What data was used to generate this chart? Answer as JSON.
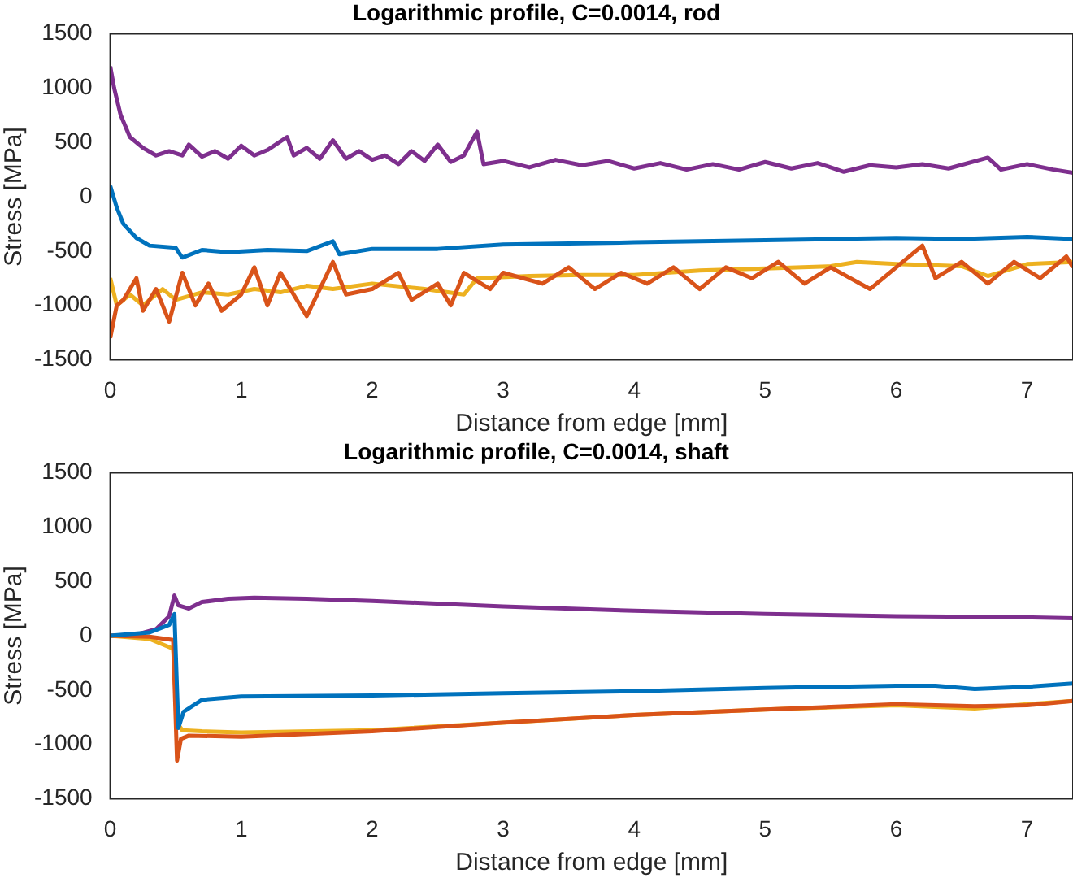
{
  "chart_data": [
    {
      "type": "line",
      "title": "Logarithmic profile, C=0.0014, rod",
      "xlabel": "Distance from edge [mm]",
      "ylabel": "Stress [MPa]",
      "xlim": [
        0,
        7.35
      ],
      "xticks": [
        0,
        1,
        2,
        3,
        4,
        5,
        6,
        7
      ],
      "ylim": [
        -1500,
        1500
      ],
      "yticks": [
        -1500,
        -1000,
        -500,
        0,
        500,
        1000,
        1500
      ],
      "series": [
        {
          "color": "#0072bd",
          "x": [
            0,
            0.05,
            0.1,
            0.2,
            0.3,
            0.5,
            0.55,
            0.7,
            0.9,
            1.2,
            1.5,
            1.7,
            1.75,
            2,
            2.5,
            3,
            3.5,
            4,
            4.5,
            5,
            5.5,
            6,
            6.5,
            7,
            7.35
          ],
          "values": [
            100,
            -100,
            -250,
            -380,
            -450,
            -470,
            -560,
            -490,
            -510,
            -490,
            -500,
            -410,
            -530,
            -480,
            -480,
            -440,
            -430,
            -420,
            -410,
            -400,
            -390,
            -380,
            -390,
            -370,
            -390
          ]
        },
        {
          "color": "#d95319",
          "x": [
            0,
            0.05,
            0.1,
            0.2,
            0.25,
            0.35,
            0.45,
            0.55,
            0.65,
            0.75,
            0.85,
            1,
            1.1,
            1.2,
            1.3,
            1.5,
            1.6,
            1.7,
            1.8,
            2,
            2.2,
            2.3,
            2.5,
            2.6,
            2.7,
            2.9,
            3,
            3.3,
            3.5,
            3.7,
            3.9,
            4.1,
            4.3,
            4.5,
            4.7,
            4.9,
            5.1,
            5.3,
            5.5,
            5.8,
            6,
            6.2,
            6.3,
            6.5,
            6.7,
            6.9,
            7.1,
            7.3,
            7.35
          ],
          "values": [
            -1300,
            -1000,
            -950,
            -750,
            -1050,
            -850,
            -1150,
            -700,
            -1000,
            -800,
            -1050,
            -900,
            -650,
            -1000,
            -700,
            -1100,
            -850,
            -600,
            -900,
            -850,
            -700,
            -950,
            -800,
            -1000,
            -700,
            -850,
            -700,
            -800,
            -650,
            -850,
            -700,
            -800,
            -650,
            -850,
            -650,
            -750,
            -600,
            -800,
            -650,
            -850,
            -650,
            -450,
            -750,
            -600,
            -800,
            -600,
            -750,
            -550,
            -650
          ]
        },
        {
          "color": "#edb120",
          "x": [
            0,
            0.05,
            0.15,
            0.25,
            0.4,
            0.5,
            0.7,
            0.9,
            1.1,
            1.3,
            1.5,
            1.7,
            2,
            2.4,
            2.7,
            2.8,
            3.2,
            3.6,
            4,
            4.5,
            5,
            5.5,
            5.7,
            6,
            6.5,
            6.7,
            7,
            7.35
          ],
          "values": [
            -750,
            -1000,
            -900,
            -1000,
            -850,
            -950,
            -880,
            -900,
            -850,
            -880,
            -820,
            -850,
            -800,
            -850,
            -900,
            -750,
            -730,
            -720,
            -720,
            -680,
            -660,
            -640,
            -600,
            -620,
            -640,
            -730,
            -620,
            -600
          ]
        },
        {
          "color": "#7e2f8e",
          "x": [
            0,
            0.03,
            0.08,
            0.15,
            0.25,
            0.35,
            0.45,
            0.55,
            0.6,
            0.7,
            0.8,
            0.9,
            1,
            1.1,
            1.2,
            1.35,
            1.4,
            1.5,
            1.6,
            1.7,
            1.8,
            1.9,
            2,
            2.1,
            2.2,
            2.3,
            2.4,
            2.5,
            2.6,
            2.7,
            2.8,
            2.85,
            3,
            3.2,
            3.4,
            3.6,
            3.8,
            4,
            4.2,
            4.4,
            4.6,
            4.8,
            5,
            5.2,
            5.4,
            5.6,
            5.8,
            6,
            6.2,
            6.4,
            6.7,
            6.8,
            7,
            7.2,
            7.35
          ],
          "values": [
            1200,
            1000,
            750,
            550,
            450,
            380,
            420,
            380,
            480,
            370,
            420,
            350,
            470,
            380,
            430,
            550,
            380,
            450,
            350,
            520,
            350,
            420,
            340,
            380,
            300,
            420,
            330,
            480,
            320,
            380,
            600,
            300,
            330,
            270,
            340,
            290,
            330,
            260,
            310,
            250,
            300,
            250,
            320,
            260,
            310,
            230,
            290,
            270,
            300,
            260,
            360,
            250,
            300,
            250,
            220
          ]
        }
      ]
    },
    {
      "type": "line",
      "title": "Logarithmic profile, C=0.0014, shaft",
      "xlabel": "Distance from edge [mm]",
      "ylabel": "Stress [MPa]",
      "xlim": [
        0,
        7.35
      ],
      "xticks": [
        0,
        1,
        2,
        3,
        4,
        5,
        6,
        7
      ],
      "ylim": [
        -1500,
        1500
      ],
      "yticks": [
        -1500,
        -1000,
        -500,
        0,
        500,
        1000,
        1500
      ],
      "series": [
        {
          "color": "#0072bd",
          "x": [
            0,
            0.3,
            0.45,
            0.49,
            0.52,
            0.56,
            0.7,
            1,
            2,
            3,
            4,
            5,
            6,
            6.3,
            6.6,
            7,
            7.35
          ],
          "values": [
            0,
            30,
            100,
            200,
            -850,
            -700,
            -590,
            -560,
            -550,
            -530,
            -510,
            -480,
            -460,
            -460,
            -490,
            -470,
            -440
          ]
        },
        {
          "color": "#d95319",
          "x": [
            0,
            0.3,
            0.48,
            0.51,
            0.54,
            0.6,
            1,
            2,
            3,
            4,
            5,
            6,
            6.6,
            7,
            7.35
          ],
          "values": [
            0,
            -10,
            -40,
            -1150,
            -950,
            -920,
            -930,
            -880,
            -800,
            -730,
            -680,
            -630,
            -650,
            -640,
            -600
          ]
        },
        {
          "color": "#edb120",
          "x": [
            0,
            0.3,
            0.48,
            0.51,
            0.55,
            0.7,
            1,
            2,
            3,
            4,
            5,
            6,
            6.6,
            7,
            7.35
          ],
          "values": [
            0,
            -30,
            -120,
            -800,
            -870,
            -880,
            -890,
            -870,
            -800,
            -730,
            -680,
            -640,
            -670,
            -630,
            -600
          ]
        },
        {
          "color": "#7e2f8e",
          "x": [
            0,
            0.2,
            0.35,
            0.45,
            0.49,
            0.52,
            0.6,
            0.7,
            0.9,
            1.1,
            1.5,
            2,
            3,
            4,
            5,
            6,
            7,
            7.35
          ],
          "values": [
            0,
            10,
            60,
            180,
            370,
            280,
            250,
            310,
            340,
            350,
            340,
            320,
            270,
            230,
            200,
            180,
            170,
            160
          ]
        }
      ]
    }
  ]
}
